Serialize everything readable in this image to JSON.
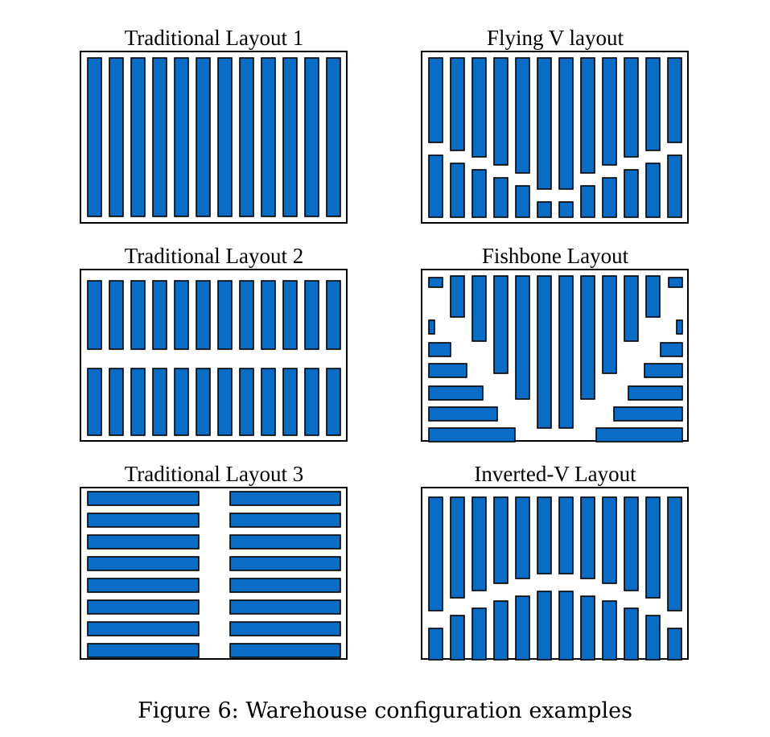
{
  "panels": [
    {
      "id": "traditional-1",
      "title": "Traditional Layout 1"
    },
    {
      "id": "flying-v",
      "title": "Flying V layout"
    },
    {
      "id": "traditional-2",
      "title": "Traditional Layout 2"
    },
    {
      "id": "fishbone",
      "title": "Fishbone Layout"
    },
    {
      "id": "traditional-3",
      "title": "Traditional Layout 3"
    },
    {
      "id": "inverted-v",
      "title": "Inverted-V Layout"
    }
  ],
  "caption": "Figure 6:  Warehouse configuration examples",
  "colors": {
    "rack_fill": "#0a6cc4",
    "rack_stroke": "#000000",
    "border": "#000000"
  }
}
